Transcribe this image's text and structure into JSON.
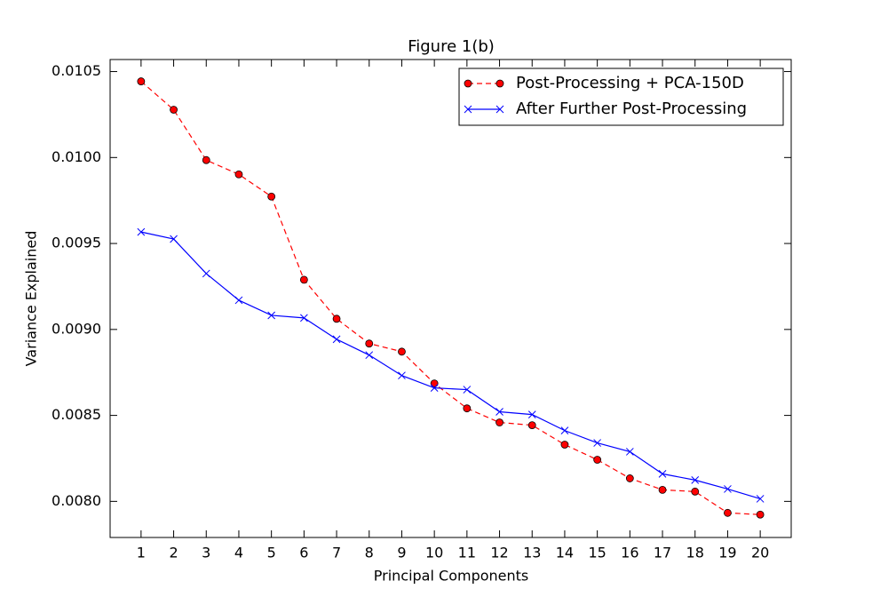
{
  "chart_data": {
    "type": "line",
    "title": "Figure 1(b)",
    "x_label": "Principal Components",
    "y_label": "Variance Explained",
    "x": [
      1,
      2,
      3,
      4,
      5,
      6,
      7,
      8,
      9,
      10,
      11,
      12,
      13,
      14,
      15,
      16,
      17,
      18,
      19,
      20
    ],
    "series": [
      {
        "name": "Post-Processing + PCA-150D",
        "color": "#ff0000",
        "line_style": "dashed",
        "marker": "circle",
        "values": [
          0.010443,
          0.010278,
          0.009985,
          0.009902,
          0.009773,
          0.009289,
          0.009062,
          0.008918,
          0.008871,
          0.008686,
          0.008541,
          0.008459,
          0.008443,
          0.00833,
          0.008242,
          0.008134,
          0.008067,
          0.008057,
          0.007933,
          0.007923
        ]
      },
      {
        "name": "After Further Post-Processing",
        "color": "#0000ff",
        "line_style": "solid",
        "marker": "x",
        "values": [
          0.009567,
          0.009526,
          0.009325,
          0.00917,
          0.009082,
          0.009067,
          0.008943,
          0.008851,
          0.008732,
          0.00866,
          0.00865,
          0.008521,
          0.008505,
          0.008412,
          0.00834,
          0.008289,
          0.00816,
          0.008124,
          0.008072,
          0.008015
        ]
      }
    ],
    "xlim": [
      0.05,
      20.95
    ],
    "xticks": [
      1,
      2,
      3,
      4,
      5,
      6,
      7,
      8,
      9,
      10,
      11,
      12,
      13,
      14,
      15,
      16,
      17,
      18,
      19,
      20
    ],
    "ylim": [
      0.00779,
      0.01057
    ],
    "yticks": [
      {
        "value": 0.008,
        "label": "0.0080"
      },
      0.0085,
      {
        "value": 0.009,
        "label": "0.0090"
      },
      0.0095,
      {
        "value": 0.01,
        "label": "0.0100"
      },
      0.0105
    ],
    "legend": "upper right",
    "grid": false
  }
}
